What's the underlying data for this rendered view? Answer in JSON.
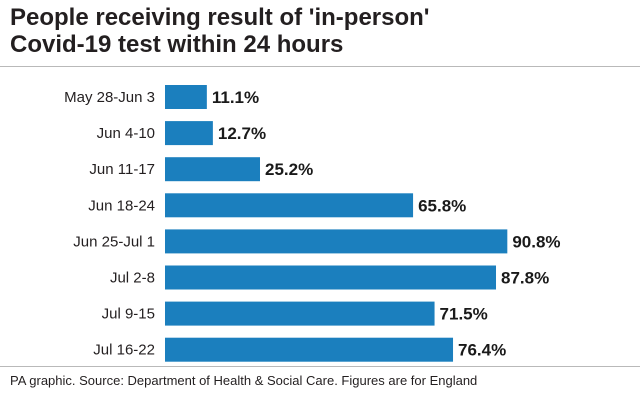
{
  "title_line1": "People receiving result of 'in-person'",
  "title_line2": "Covid-19 test within 24 hours",
  "source": "PA graphic. Source: Department of Health & Social Care. Figures are for England",
  "colors": {
    "bar": "#1b7fbe",
    "text": "#231f20",
    "divider": "#b9b9b9"
  },
  "chart_data": {
    "type": "bar",
    "orientation": "horizontal",
    "categories": [
      "May 28-Jun 3",
      "Jun 4-10",
      "Jun 11-17",
      "Jun 18-24",
      "Jun 25-Jul 1",
      "Jul 2-8",
      "Jul 9-15",
      "Jul 16-22"
    ],
    "values": [
      11.1,
      12.7,
      25.2,
      65.8,
      90.8,
      87.8,
      71.5,
      76.4
    ],
    "value_labels": [
      "11.1%",
      "12.7%",
      "25.2%",
      "65.8%",
      "90.8%",
      "87.8%",
      "71.5%",
      "76.4%"
    ],
    "unit": "%",
    "xlim": [
      0,
      100
    ],
    "grid": false,
    "legend": "none"
  }
}
